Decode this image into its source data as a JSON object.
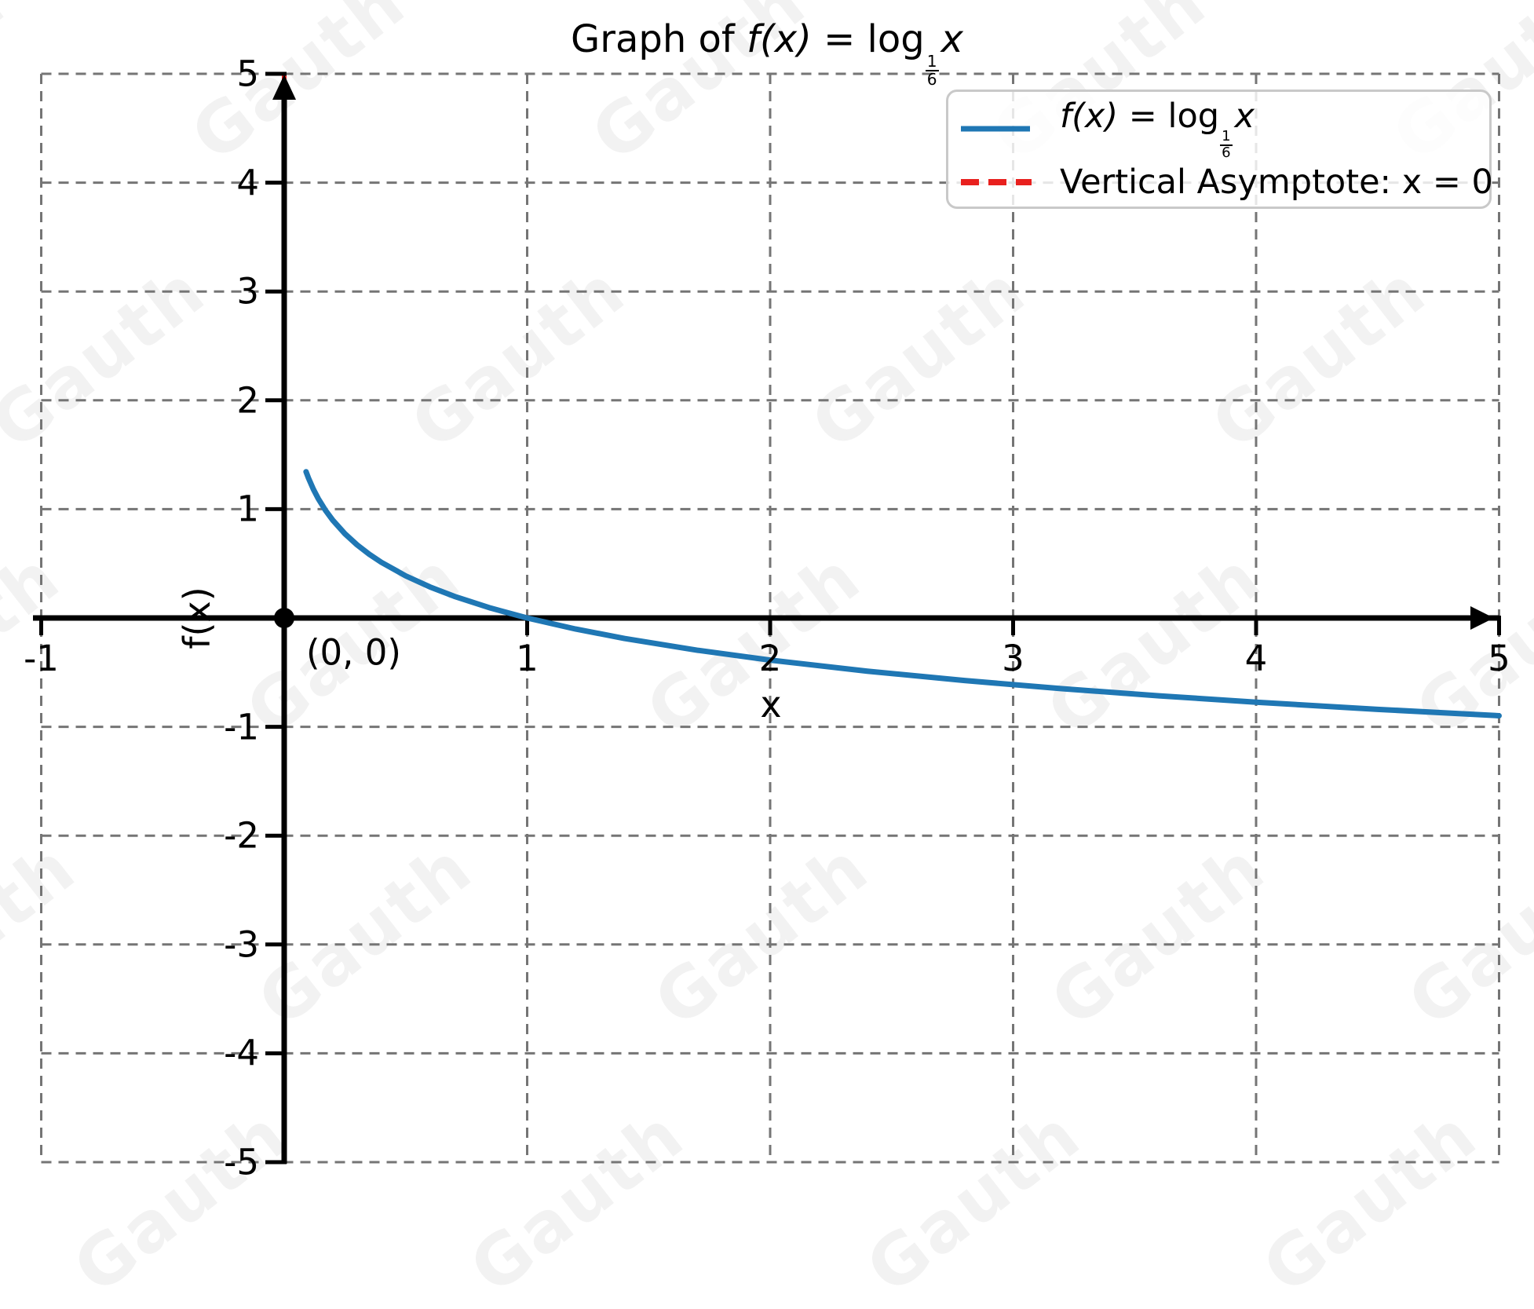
{
  "title": {
    "prefix": "Graph of ",
    "fx": "f(x)",
    "mid": " = log",
    "frac_num": "1",
    "frac_den": "6",
    "arg": "x"
  },
  "axes": {
    "xlabel": "x",
    "ylabel": "f(x)",
    "xticks": [
      -1,
      1,
      2,
      3,
      4,
      5
    ],
    "yticks": [
      5,
      4,
      3,
      2,
      1,
      -1,
      -2,
      -3,
      -4,
      -5
    ],
    "xlim": [
      -1,
      5
    ],
    "ylim": [
      -5,
      5
    ]
  },
  "annotations": {
    "origin_label": "(0, 0)"
  },
  "legend": {
    "entry1": {
      "fx": "f(x)",
      "mid": " = log",
      "frac_num": "1",
      "frac_den": "6",
      "arg": "x",
      "color": "#1f77b4"
    },
    "entry2": {
      "label": "Vertical Asymptote: x = 0",
      "color": "#e8201e"
    }
  },
  "watermark": {
    "text": "Gauth"
  },
  "colors": {
    "curve": "#1f77b4",
    "asymptote": "#e8201e",
    "grid": "#757575",
    "axis": "#000000"
  },
  "chart_data": {
    "type": "line",
    "title": "Graph of f(x) = log_(1/6) x",
    "xlabel": "x",
    "ylabel": "f(x)",
    "xlim": [
      -1,
      5
    ],
    "ylim": [
      -5,
      5
    ],
    "grid": true,
    "grid_style": "dashed",
    "legend_position": "upper right",
    "series": [
      {
        "name": "f(x) = log_(1/6) x",
        "color": "#1f77b4",
        "style": "solid",
        "x": [
          0.09,
          0.1,
          0.12,
          0.14,
          0.17,
          0.2,
          0.25,
          0.3,
          0.35,
          0.4,
          0.5,
          0.6,
          0.7,
          0.85,
          1.0,
          1.2,
          1.4,
          1.7,
          2.0,
          2.4,
          2.8,
          3.2,
          3.6,
          4.0,
          4.5,
          5.0
        ],
        "y": [
          1.3439,
          1.2851,
          1.1833,
          1.0973,
          0.9889,
          0.8982,
          0.7737,
          0.6719,
          0.5859,
          0.5114,
          0.3869,
          0.2851,
          0.1991,
          0.0907,
          0.0,
          -0.1018,
          -0.1878,
          -0.2961,
          -0.3869,
          -0.4886,
          -0.5746,
          -0.6492,
          -0.7149,
          -0.7737,
          -0.8394,
          -0.8982
        ]
      },
      {
        "name": "Vertical Asymptote: x = 0",
        "color": "#e8201e",
        "style": "dashed",
        "note": "vertical line at x = 0, drawn beneath the black y-axis"
      }
    ],
    "annotations": [
      {
        "text": "(0, 0)",
        "at": [
          0,
          0
        ]
      }
    ]
  }
}
